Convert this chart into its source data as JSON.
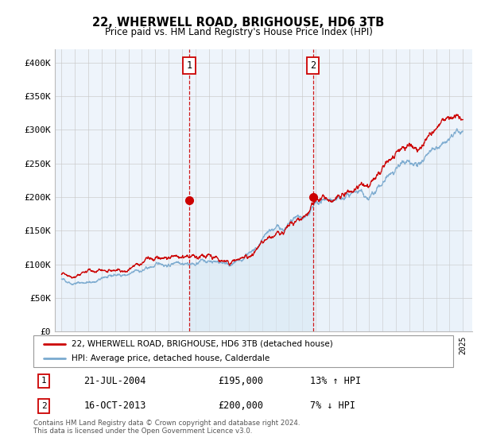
{
  "title": "22, WHERWELL ROAD, BRIGHOUSE, HD6 3TB",
  "subtitle": "Price paid vs. HM Land Registry's House Price Index (HPI)",
  "legend_line1": "22, WHERWELL ROAD, BRIGHOUSE, HD6 3TB (detached house)",
  "legend_line2": "HPI: Average price, detached house, Calderdale",
  "annotation1_label": "1",
  "annotation1_date": "21-JUL-2004",
  "annotation1_price": "£195,000",
  "annotation1_hpi": "13% ↑ HPI",
  "annotation2_label": "2",
  "annotation2_date": "16-OCT-2013",
  "annotation2_price": "£200,000",
  "annotation2_hpi": "7% ↓ HPI",
  "footer": "Contains HM Land Registry data © Crown copyright and database right 2024.\nThis data is licensed under the Open Government Licence v3.0.",
  "price_color": "#cc0000",
  "hpi_color": "#7aaacf",
  "hpi_fill_color": "#d8e8f5",
  "vline_color": "#cc0000",
  "annotation_box_color": "#cc0000",
  "chart_bg_color": "#eef4fb",
  "ylim": [
    0,
    420000
  ],
  "yticks": [
    0,
    50000,
    100000,
    150000,
    200000,
    250000,
    300000,
    350000,
    400000
  ],
  "ytick_labels": [
    "£0",
    "£50K",
    "£100K",
    "£150K",
    "£200K",
    "£250K",
    "£300K",
    "£350K",
    "£400K"
  ],
  "year_start": 1995,
  "year_end": 2025,
  "sale1_year": 2004.55,
  "sale1_price": 195000,
  "sale2_year": 2013.79,
  "sale2_price": 200000
}
